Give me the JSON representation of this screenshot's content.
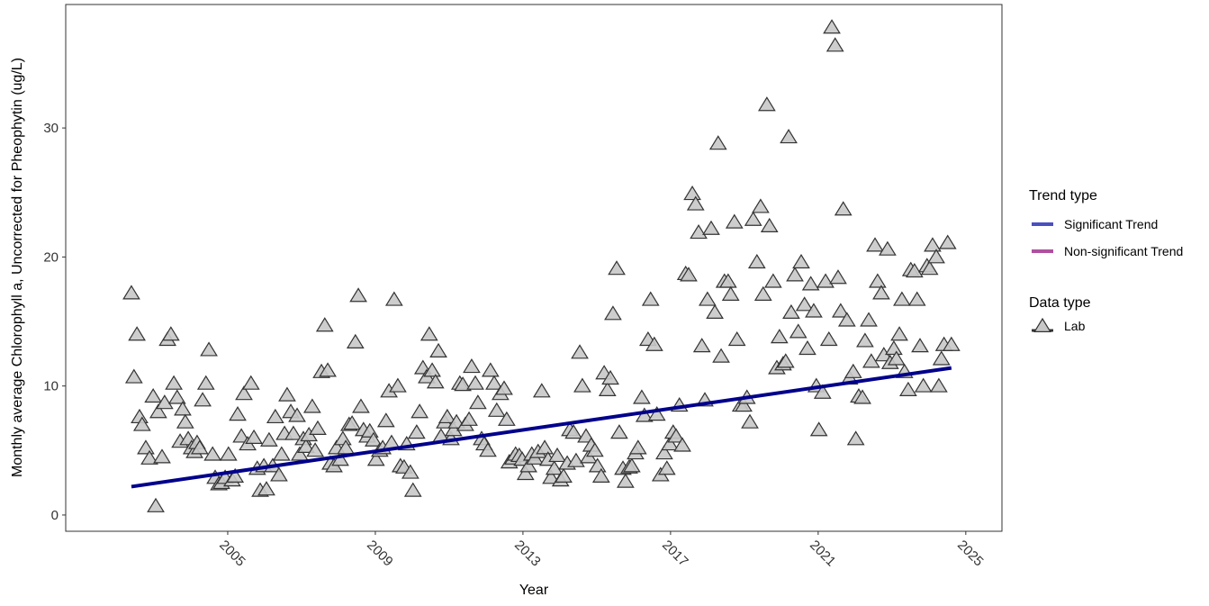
{
  "chart_data": {
    "type": "scatter",
    "xlabel": "Year",
    "ylabel": "Monthly average Chlorophyll a, Uncorrected for Pheophytin (ug/L)",
    "xlim": [
      2000.61,
      2025.98
    ],
    "ylim": [
      -1.26,
      39.57
    ],
    "xticks": [
      2005,
      2009,
      2013,
      2017,
      2021,
      2025
    ],
    "yticks": [
      0,
      10,
      20,
      30
    ],
    "series": [
      {
        "name": "Lab",
        "color": "#c8c8c8",
        "x": [
          2002.39,
          2002.54,
          2002.46,
          2002.61,
          2002.68,
          2002.78,
          2002.88,
          2002.98,
          2003.05,
          2003.12,
          2003.22,
          2003.29,
          2003.37,
          2003.46,
          2003.54,
          2003.63,
          2003.71,
          2003.78,
          2003.85,
          2003.93,
          2004.02,
          2004.1,
          2004.17,
          2004.24,
          2004.32,
          2004.41,
          2004.49,
          2004.59,
          2004.66,
          2004.76,
          2004.83,
          2004.93,
          2005.02,
          2005.12,
          2005.2,
          2005.27,
          2005.37,
          2005.44,
          2005.54,
          2005.63,
          2005.71,
          2005.8,
          2005.88,
          2005.98,
          2006.05,
          2006.12,
          2006.22,
          2006.29,
          2006.39,
          2006.46,
          2006.54,
          2006.61,
          2006.71,
          2006.78,
          2006.88,
          2006.95,
          2007.05,
          2007.12,
          2007.2,
          2007.29,
          2007.37,
          2007.44,
          2007.54,
          2007.63,
          2007.71,
          2007.78,
          2007.88,
          2007.95,
          2008.05,
          2008.12,
          2008.2,
          2008.29,
          2008.37,
          2008.46,
          2008.54,
          2008.61,
          2008.68,
          2008.78,
          2008.85,
          2008.95,
          2009.02,
          2009.12,
          2009.2,
          2009.29,
          2009.37,
          2009.44,
          2009.51,
          2009.61,
          2009.68,
          2009.78,
          2009.85,
          2009.95,
          2010.02,
          2010.12,
          2010.2,
          2010.29,
          2010.39,
          2010.46,
          2010.54,
          2010.63,
          2010.71,
          2010.78,
          2010.88,
          2010.95,
          2011.05,
          2011.12,
          2011.2,
          2011.29,
          2011.37,
          2011.44,
          2011.54,
          2011.61,
          2011.71,
          2011.78,
          2011.88,
          2011.95,
          2012.05,
          2012.12,
          2012.22,
          2012.29,
          2012.39,
          2012.49,
          2012.56,
          2012.63,
          2012.73,
          2012.8,
          2012.9,
          2012.98,
          2013.07,
          2013.15,
          2013.24,
          2013.32,
          2013.41,
          2013.51,
          2013.59,
          2013.68,
          2013.76,
          2013.85,
          2013.93,
          2014.02,
          2014.1,
          2014.2,
          2014.27,
          2014.37,
          2014.44,
          2014.54,
          2014.61,
          2014.71,
          2014.78,
          2014.85,
          2014.95,
          2015.02,
          2015.12,
          2015.2,
          2015.29,
          2015.37,
          2015.44,
          2015.54,
          2015.61,
          2015.71,
          2015.78,
          2015.88,
          2015.95,
          2016.05,
          2016.12,
          2016.22,
          2016.29,
          2016.39,
          2016.46,
          2016.56,
          2016.63,
          2016.73,
          2016.83,
          2016.9,
          2016.98,
          2017.07,
          2017.15,
          2017.24,
          2017.32,
          2017.41,
          2017.49,
          2017.59,
          2017.68,
          2017.76,
          2017.85,
          2017.93,
          2018.0,
          2018.1,
          2018.2,
          2018.29,
          2018.37,
          2018.46,
          2018.56,
          2018.63,
          2018.73,
          2018.8,
          2018.9,
          2018.98,
          2019.07,
          2019.15,
          2019.24,
          2019.34,
          2019.44,
          2019.51,
          2019.61,
          2019.68,
          2019.78,
          2019.88,
          2019.95,
          2020.05,
          2020.12,
          2020.2,
          2020.27,
          2020.37,
          2020.46,
          2020.54,
          2020.63,
          2020.71,
          2020.8,
          2020.88,
          2020.95,
          2021.02,
          2021.12,
          2021.2,
          2021.29,
          2021.37,
          2021.46,
          2021.54,
          2021.61,
          2021.68,
          2021.78,
          2021.85,
          2021.95,
          2022.02,
          2022.1,
          2022.2,
          2022.27,
          2022.37,
          2022.44,
          2022.54,
          2022.61,
          2022.71,
          2022.78,
          2022.88,
          2022.95,
          2023.05,
          2023.12,
          2023.2,
          2023.27,
          2023.34,
          2023.44,
          2023.51,
          2023.61,
          2023.68,
          2023.76,
          2023.85,
          2023.95,
          2024.02,
          2024.1,
          2024.2,
          2024.27,
          2024.34,
          2024.41,
          2024.51,
          2024.61
        ],
        "values": [
          17.2,
          14.0,
          10.7,
          7.6,
          7.0,
          5.2,
          4.4,
          9.2,
          0.7,
          8.0,
          4.5,
          8.7,
          13.6,
          14.0,
          10.2,
          9.1,
          5.7,
          8.2,
          7.2,
          5.9,
          5.2,
          4.9,
          5.6,
          5.2,
          8.9,
          10.2,
          12.8,
          4.7,
          2.9,
          2.4,
          2.5,
          2.9,
          4.7,
          2.7,
          3.0,
          7.8,
          6.1,
          9.4,
          5.5,
          10.2,
          6.0,
          3.6,
          1.9,
          3.8,
          2.0,
          5.8,
          3.8,
          7.6,
          3.1,
          4.7,
          6.3,
          9.3,
          8.0,
          6.3,
          7.7,
          4.7,
          5.9,
          5.3,
          6.2,
          8.4,
          5.0,
          6.7,
          11.1,
          14.7,
          11.2,
          4.0,
          3.8,
          5.2,
          4.3,
          5.9,
          5.2,
          7.0,
          7.1,
          13.4,
          17.0,
          8.4,
          6.6,
          6.1,
          6.5,
          5.8,
          4.3,
          5.0,
          5.2,
          7.3,
          9.6,
          5.6,
          16.7,
          10.0,
          3.8,
          3.7,
          5.5,
          3.3,
          1.9,
          6.4,
          8.0,
          11.4,
          10.7,
          14.0,
          11.2,
          10.3,
          12.7,
          6.1,
          7.2,
          7.6,
          5.9,
          6.6,
          7.2,
          10.2,
          10.1,
          7.0,
          7.4,
          11.5,
          10.2,
          8.7,
          5.9,
          5.5,
          5.0,
          11.2,
          10.2,
          8.1,
          9.4,
          9.8,
          7.4,
          4.1,
          4.4,
          4.7,
          4.6,
          4.3,
          3.2,
          3.8,
          4.7,
          4.4,
          4.9,
          9.6,
          5.2,
          4.3,
          2.9,
          3.6,
          4.6,
          2.7,
          3.0,
          4.0,
          6.6,
          6.4,
          4.2,
          12.6,
          10.0,
          6.1,
          4.5,
          5.4,
          5.0,
          3.8,
          3.0,
          11.0,
          9.7,
          10.6,
          15.6,
          19.1,
          6.4,
          3.6,
          2.6,
          3.7,
          3.8,
          4.8,
          5.2,
          9.1,
          7.7,
          13.6,
          16.7,
          13.2,
          7.8,
          3.1,
          4.8,
          3.6,
          5.5,
          6.4,
          6.1,
          8.5,
          5.4,
          18.7,
          18.6,
          24.9,
          24.1,
          21.9,
          13.1,
          8.9,
          16.7,
          22.2,
          15.7,
          28.8,
          12.3,
          18.1,
          18.1,
          17.1,
          22.7,
          13.6,
          8.5,
          8.5,
          9.1,
          7.2,
          22.9,
          19.6,
          23.9,
          17.1,
          31.8,
          22.4,
          18.1,
          11.4,
          13.8,
          11.7,
          11.9,
          29.3,
          15.7,
          18.6,
          14.2,
          19.6,
          16.3,
          12.9,
          17.9,
          15.8,
          10.0,
          6.6,
          9.5,
          18.1,
          13.6,
          37.8,
          36.4,
          18.4,
          15.8,
          23.7,
          15.1,
          10.6,
          11.1,
          5.9,
          9.2,
          9.1,
          13.5,
          15.1,
          11.9,
          20.9,
          18.1,
          17.2,
          12.4,
          20.6,
          11.8,
          12.9,
          12.1,
          14.0,
          16.7,
          11.1,
          9.7,
          19.0,
          18.9,
          16.7,
          13.1,
          10.0,
          19.3,
          19.1,
          20.9,
          20.0,
          10.0,
          12.1,
          13.2,
          21.1,
          13.2
        ]
      }
    ],
    "trend": {
      "color": "#00008b",
      "x": [
        2002.39,
        2024.61
      ],
      "values": [
        2.2,
        11.4
      ]
    },
    "legend": [
      {
        "title": "Trend type",
        "entries": [
          {
            "name": "Significant Trend",
            "color": "#4a4fc0"
          },
          {
            "name": "Non-significant Trend",
            "color": "#b04fa0"
          }
        ]
      },
      {
        "title": "Data type"
      }
    ]
  }
}
